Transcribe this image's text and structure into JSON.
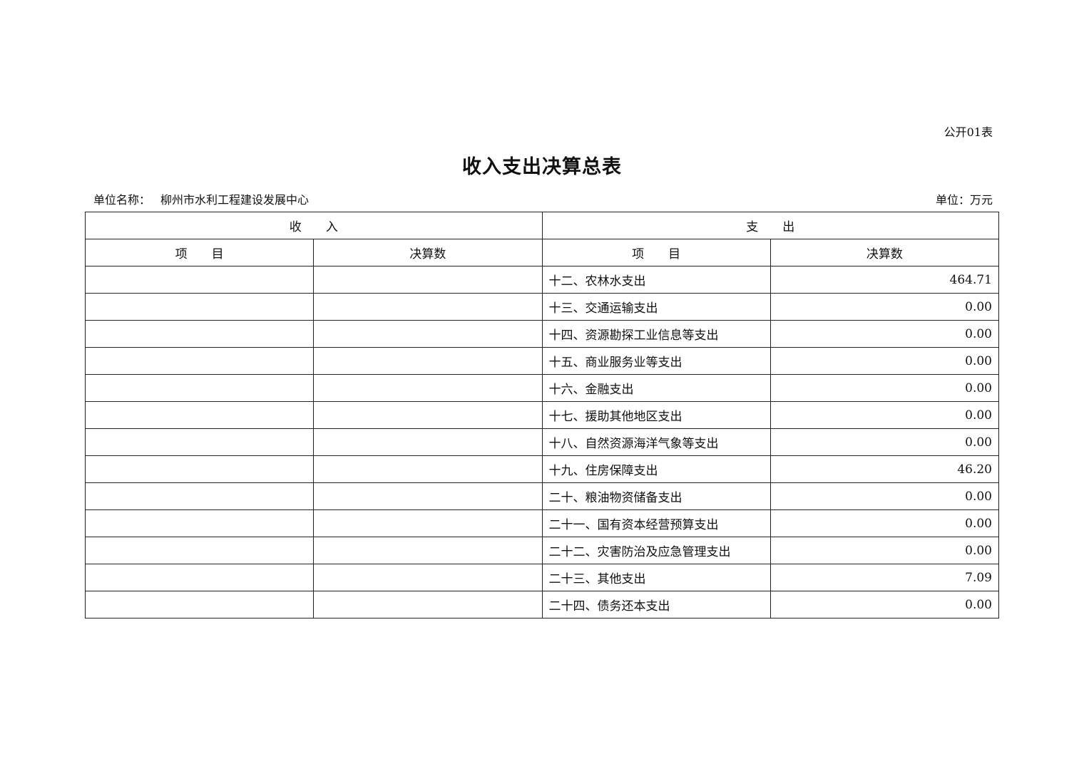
{
  "form_number": "公开01表",
  "title": "收入支出决算总表",
  "unit_name_label": "单位名称：",
  "unit_name": "柳州市水利工程建设发展中心",
  "unit_label": "单位：万元",
  "table": {
    "income_header": "收　　入",
    "expense_header": "支　　出",
    "columns": [
      "项　　目",
      "决算数",
      "项　　目",
      "决算数"
    ],
    "rows": [
      {
        "income_item": "",
        "income_amount": "",
        "expense_item": "十二、农林水支出",
        "expense_amount": "464.71"
      },
      {
        "income_item": "",
        "income_amount": "",
        "expense_item": "十三、交通运输支出",
        "expense_amount": "0.00"
      },
      {
        "income_item": "",
        "income_amount": "",
        "expense_item": "十四、资源勘探工业信息等支出",
        "expense_amount": "0.00"
      },
      {
        "income_item": "",
        "income_amount": "",
        "expense_item": "十五、商业服务业等支出",
        "expense_amount": "0.00"
      },
      {
        "income_item": "",
        "income_amount": "",
        "expense_item": "十六、金融支出",
        "expense_amount": "0.00"
      },
      {
        "income_item": "",
        "income_amount": "",
        "expense_item": "十七、援助其他地区支出",
        "expense_amount": "0.00"
      },
      {
        "income_item": "",
        "income_amount": "",
        "expense_item": "十八、自然资源海洋气象等支出",
        "expense_amount": "0.00"
      },
      {
        "income_item": "",
        "income_amount": "",
        "expense_item": "十九、住房保障支出",
        "expense_amount": "46.20"
      },
      {
        "income_item": "",
        "income_amount": "",
        "expense_item": "二十、粮油物资储备支出",
        "expense_amount": "0.00"
      },
      {
        "income_item": "",
        "income_amount": "",
        "expense_item": "二十一、国有资本经营预算支出",
        "expense_amount": "0.00"
      },
      {
        "income_item": "",
        "income_amount": "",
        "expense_item": "二十二、灾害防治及应急管理支出",
        "expense_amount": "0.00"
      },
      {
        "income_item": "",
        "income_amount": "",
        "expense_item": "二十三、其他支出",
        "expense_amount": "7.09"
      },
      {
        "income_item": "",
        "income_amount": "",
        "expense_item": "二十四、债务还本支出",
        "expense_amount": "0.00"
      }
    ]
  }
}
